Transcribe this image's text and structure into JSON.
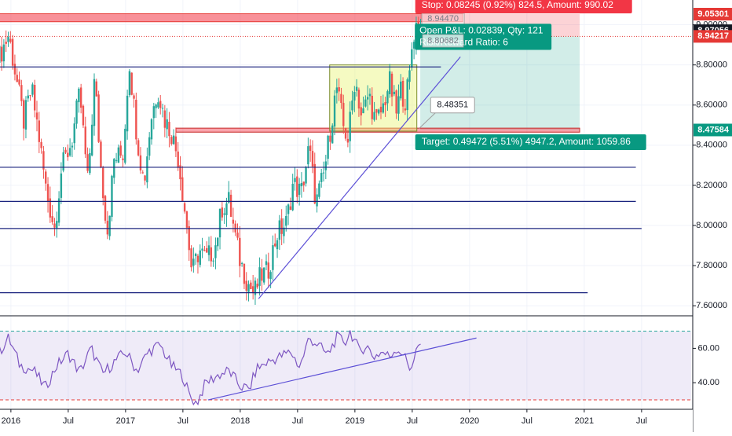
{
  "chart_data": {
    "type": "candlestick",
    "price_axis": {
      "range": [
        7.55,
        9.1
      ],
      "ticks": [
        "9.00000",
        "8.80000",
        "8.60000",
        "8.40000",
        "8.20000",
        "8.00000",
        "7.80000",
        "7.60000"
      ],
      "tick_values": [
        9.0,
        8.8,
        8.6,
        8.4,
        8.2,
        8.0,
        7.8,
        7.6
      ],
      "price_tags": [
        {
          "value": 9.05301,
          "label": "9.05301",
          "bg": "#e53935",
          "fg": "#ffffff"
        },
        {
          "value": 8.97056,
          "label": "8.97056",
          "bg": "#131722",
          "fg": "#ffffff"
        },
        {
          "value": 8.94217,
          "label": "8.94217",
          "bg": "#e53935",
          "fg": "#ffffff"
        },
        {
          "value": 8.47584,
          "label": "8.47584",
          "bg": "#089981",
          "fg": "#ffffff"
        }
      ]
    },
    "time_axis": {
      "labels": [
        "2016",
        "Jul",
        "2017",
        "Jul",
        "2018",
        "Jul",
        "2019",
        "Jul",
        "2020",
        "Jul",
        "2021",
        "Jul"
      ],
      "label_times": [
        2016.0,
        2016.5,
        2017.0,
        2017.5,
        2018.0,
        2018.5,
        2019.0,
        2019.5,
        2020.0,
        2020.5,
        2021.0,
        2021.5
      ]
    },
    "horizontal_levels": [
      {
        "value": 8.79,
        "from": 2015.9,
        "to": 2019.75,
        "color": "#1a237e"
      },
      {
        "value": 8.29,
        "from": 2015.9,
        "to": 2021.45,
        "color": "#1a237e"
      },
      {
        "value": 8.12,
        "from": 2015.9,
        "to": 2021.45,
        "color": "#1a237e"
      },
      {
        "value": 7.985,
        "from": 2015.9,
        "to": 2021.5,
        "color": "#1a237e"
      },
      {
        "value": 7.665,
        "from": 2015.9,
        "to": 2021.03,
        "color": "#1a237e"
      }
    ],
    "resistance_zone": {
      "from": 2015.9,
      "to": 2019.94,
      "top": 9.055,
      "bottom": 9.015
    },
    "support_zone": {
      "from": 2017.44,
      "to": 2020.96,
      "top": 8.485,
      "bottom": 8.465
    },
    "range_box": {
      "from": 2018.78,
      "to": 2019.54,
      "top": 8.8,
      "bottom": 8.47
    },
    "position": {
      "entry": 8.94217,
      "stop": 9.05301,
      "target": 8.47584,
      "from": 2019.57,
      "to": 2020.96,
      "stop_label": "Stop: 0.08245 (0.92%) 824.5, Amount: 990.02",
      "pnl_label": "Open P&L: 0.02839, Qty: 121",
      "ratio_label": "Risk/Reward Ratio: 6",
      "target_label": "Target: 0.49472 (5.51%) 4947.2, Amount: 1059.86",
      "faded_prices": [
        "8.94470",
        "8.80682"
      ]
    },
    "trendlines": [
      {
        "x1": 2018.16,
        "y1": 7.635,
        "x2": 2019.92,
        "y2": 8.84,
        "color": "#5c4fd6"
      }
    ],
    "callout": {
      "price": 8.48351,
      "label": "8.48351",
      "pointer_time": 2019.56
    },
    "price_points": [
      [
        2015.9,
        8.82
      ],
      [
        2016.0,
        8.95
      ],
      [
        2016.07,
        8.72
      ],
      [
        2016.13,
        8.52
      ],
      [
        2016.2,
        8.68
      ],
      [
        2016.26,
        8.46
      ],
      [
        2016.33,
        8.16
      ],
      [
        2016.4,
        7.99
      ],
      [
        2016.46,
        8.28
      ],
      [
        2016.55,
        8.42
      ],
      [
        2016.62,
        8.66
      ],
      [
        2016.69,
        8.21
      ],
      [
        2016.75,
        8.74
      ],
      [
        2016.8,
        8.31
      ],
      [
        2016.86,
        7.97
      ],
      [
        2016.92,
        8.33
      ],
      [
        2017.0,
        8.36
      ],
      [
        2017.05,
        8.83
      ],
      [
        2017.12,
        8.44
      ],
      [
        2017.18,
        8.21
      ],
      [
        2017.24,
        8.53
      ],
      [
        2017.3,
        8.68
      ],
      [
        2017.36,
        8.53
      ],
      [
        2017.42,
        8.46
      ],
      [
        2017.48,
        8.33
      ],
      [
        2017.54,
        8.06
      ],
      [
        2017.6,
        7.76
      ],
      [
        2017.66,
        7.88
      ],
      [
        2017.72,
        7.83
      ],
      [
        2017.8,
        7.89
      ],
      [
        2017.86,
        8.09
      ],
      [
        2017.92,
        8.12
      ],
      [
        2017.98,
        7.93
      ],
      [
        2018.02,
        7.82
      ],
      [
        2018.08,
        7.72
      ],
      [
        2018.14,
        7.66
      ],
      [
        2018.2,
        7.75
      ],
      [
        2018.26,
        7.77
      ],
      [
        2018.34,
        7.96
      ],
      [
        2018.42,
        8.01
      ],
      [
        2018.48,
        8.21
      ],
      [
        2018.55,
        8.16
      ],
      [
        2018.62,
        8.39
      ],
      [
        2018.68,
        8.11
      ],
      [
        2018.75,
        8.26
      ],
      [
        2018.8,
        8.46
      ],
      [
        2018.86,
        8.69
      ],
      [
        2018.92,
        8.49
      ],
      [
        2018.96,
        8.43
      ],
      [
        2019.02,
        8.74
      ],
      [
        2019.08,
        8.53
      ],
      [
        2019.14,
        8.66
      ],
      [
        2019.2,
        8.51
      ],
      [
        2019.26,
        8.58
      ],
      [
        2019.32,
        8.72
      ],
      [
        2019.38,
        8.56
      ],
      [
        2019.42,
        8.68
      ],
      [
        2019.46,
        8.62
      ],
      [
        2019.5,
        8.76
      ],
      [
        2019.52,
        8.92
      ],
      [
        2019.55,
        9.0
      ],
      [
        2019.58,
        8.97
      ]
    ],
    "rsi": {
      "range": [
        25,
        78
      ],
      "ticks": [
        "60.00",
        "40.00"
      ],
      "tick_values": [
        60,
        40
      ],
      "upper_band": 70,
      "lower_band": 30,
      "points": [
        [
          2015.9,
          58
        ],
        [
          2015.98,
          66
        ],
        [
          2016.08,
          50
        ],
        [
          2016.2,
          47
        ],
        [
          2016.3,
          37
        ],
        [
          2016.4,
          50
        ],
        [
          2016.5,
          57
        ],
        [
          2016.6,
          46
        ],
        [
          2016.7,
          60
        ],
        [
          2016.8,
          45
        ],
        [
          2016.9,
          52
        ],
        [
          2017.0,
          58
        ],
        [
          2017.1,
          47
        ],
        [
          2017.2,
          58
        ],
        [
          2017.3,
          62
        ],
        [
          2017.4,
          50
        ],
        [
          2017.5,
          44
        ],
        [
          2017.56,
          32
        ],
        [
          2017.62,
          28
        ],
        [
          2017.7,
          40
        ],
        [
          2017.8,
          44
        ],
        [
          2017.9,
          47
        ],
        [
          2018.0,
          38
        ],
        [
          2018.08,
          36
        ],
        [
          2018.14,
          48
        ],
        [
          2018.24,
          52
        ],
        [
          2018.34,
          55
        ],
        [
          2018.44,
          58
        ],
        [
          2018.52,
          49
        ],
        [
          2018.6,
          66
        ],
        [
          2018.68,
          62
        ],
        [
          2018.76,
          56
        ],
        [
          2018.84,
          66
        ],
        [
          2018.92,
          64
        ],
        [
          2018.96,
          70
        ],
        [
          2019.04,
          58
        ],
        [
          2019.1,
          62
        ],
        [
          2019.16,
          55
        ],
        [
          2019.24,
          58
        ],
        [
          2019.3,
          55
        ],
        [
          2019.36,
          60
        ],
        [
          2019.42,
          57
        ],
        [
          2019.48,
          48
        ],
        [
          2019.52,
          55
        ],
        [
          2019.55,
          62
        ],
        [
          2019.58,
          59
        ]
      ],
      "trendline": {
        "x1": 2017.72,
        "y1": 30,
        "x2": 2020.06,
        "y2": 66
      }
    }
  }
}
